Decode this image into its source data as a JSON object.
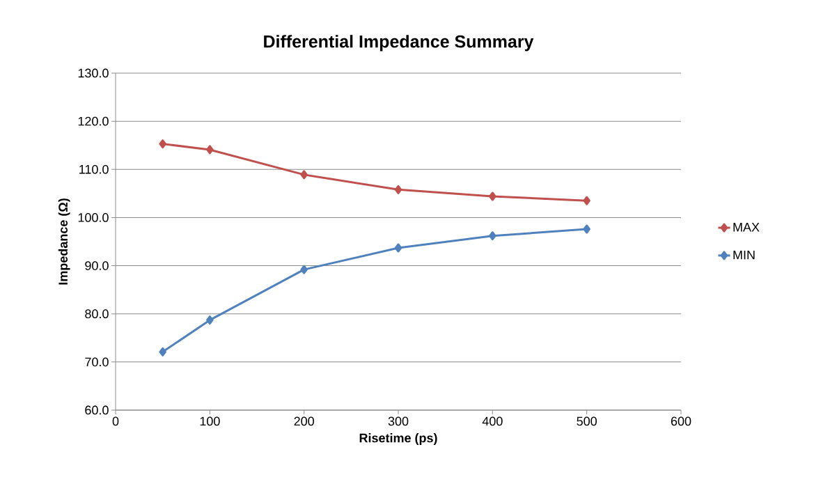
{
  "chart_data": {
    "type": "line",
    "title": "Differential Impedance Summary",
    "xlabel": "Risetime (ps)",
    "ylabel": "Impedance (Ω)",
    "x": [
      50,
      100,
      200,
      300,
      400,
      500
    ],
    "series": [
      {
        "name": "MAX",
        "color": "#c0504d",
        "values": [
          115.3,
          114.1,
          108.9,
          105.8,
          104.4,
          103.5
        ]
      },
      {
        "name": "MIN",
        "color": "#4f81bd",
        "values": [
          72.1,
          78.7,
          89.2,
          93.7,
          96.2,
          97.6
        ]
      }
    ],
    "xlim": [
      0,
      600
    ],
    "xticks": [
      0,
      100,
      200,
      300,
      400,
      500,
      600
    ],
    "ylim": [
      60,
      130
    ],
    "yticks": [
      {
        "value": 60,
        "label": "60.0"
      },
      {
        "value": 70,
        "label": "70.0"
      },
      {
        "value": 80,
        "label": "80.0"
      },
      {
        "value": 90,
        "label": "90.0"
      },
      {
        "value": 100,
        "label": "100.0"
      },
      {
        "value": 110,
        "label": "110.0"
      },
      {
        "value": 120,
        "label": "120.0"
      },
      {
        "value": 130,
        "label": "130.0"
      }
    ],
    "grid": "y",
    "legend": "right",
    "marker": "diamond",
    "line_style": "solid"
  }
}
